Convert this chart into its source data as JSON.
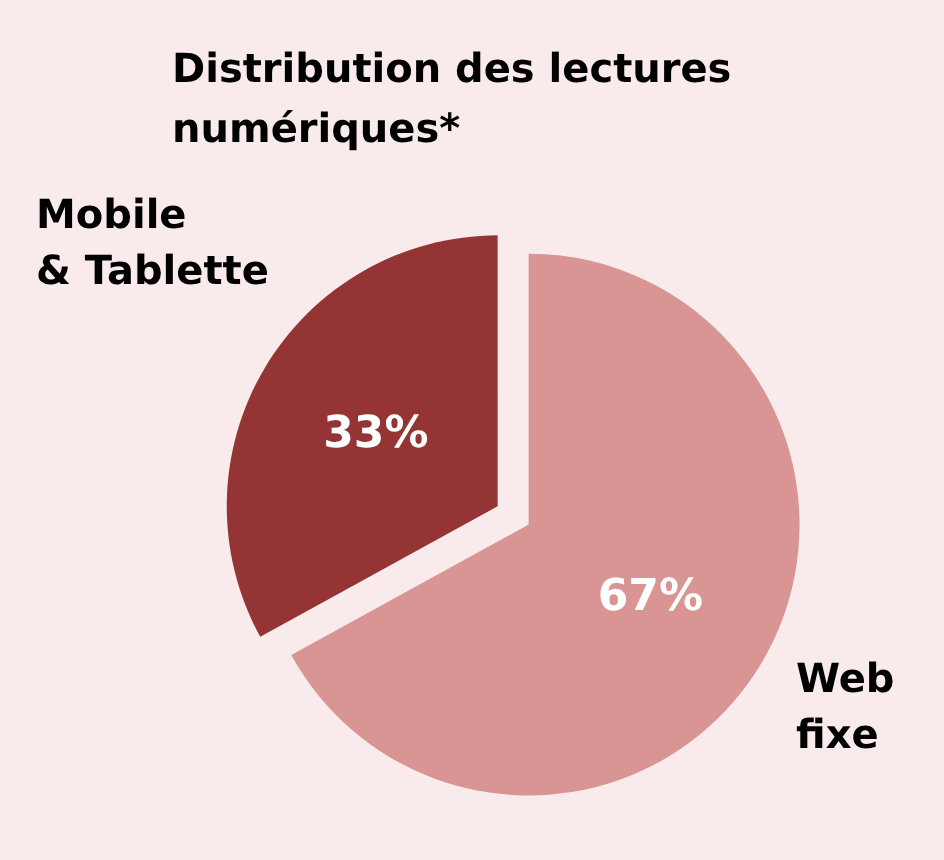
{
  "chart_data": {
    "type": "pie",
    "title": "Distribution des lectures numériques*",
    "categories": [
      "Mobile\n& Tablette",
      "Web\nfixe"
    ],
    "values": [
      33,
      67
    ],
    "colors": [
      "#943434",
      "#d99594"
    ],
    "value_labels": [
      "33%",
      "67%"
    ],
    "legend": false
  }
}
